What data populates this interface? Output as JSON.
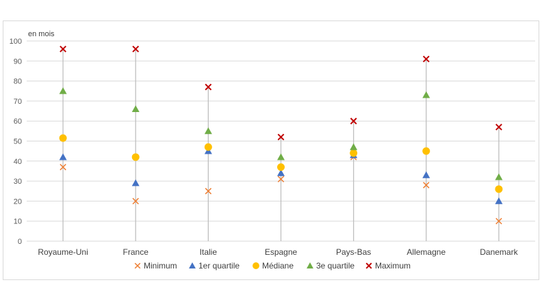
{
  "chart_data": {
    "type": "scatter",
    "unit_label": "en mois",
    "categories": [
      "Royaume-Uni",
      "France",
      "Italie",
      "Espagne",
      "Pays-Bas",
      "Allemagne",
      "Danemark"
    ],
    "ylim": [
      0,
      100
    ],
    "yticks": [
      0,
      10,
      20,
      30,
      40,
      50,
      60,
      70,
      80,
      90,
      100
    ],
    "grid": true,
    "legend_position": "bottom",
    "series": [
      {
        "name": "Minimum",
        "marker": "x",
        "color": "#ED7D31",
        "values": [
          37,
          20,
          25,
          31,
          42,
          28,
          10
        ]
      },
      {
        "name": "1er quartile",
        "marker": "triangle",
        "color": "#4472C4",
        "values": [
          42,
          29,
          45,
          34,
          43,
          33,
          20
        ]
      },
      {
        "name": "Médiane",
        "marker": "circle",
        "color": "#FFC000",
        "values": [
          51.5,
          42,
          47,
          37,
          44,
          45,
          26
        ]
      },
      {
        "name": "3e quartile",
        "marker": "triangle",
        "color": "#70AD47",
        "values": [
          75,
          66,
          55,
          42,
          47,
          73,
          32
        ]
      },
      {
        "name": "Maximum",
        "marker": "x",
        "color": "#C00000",
        "values": [
          96,
          96,
          77,
          52,
          60,
          91,
          57
        ]
      }
    ],
    "range_line_color": "#BFBFBF",
    "gridline_color": "#D9D9D9"
  }
}
